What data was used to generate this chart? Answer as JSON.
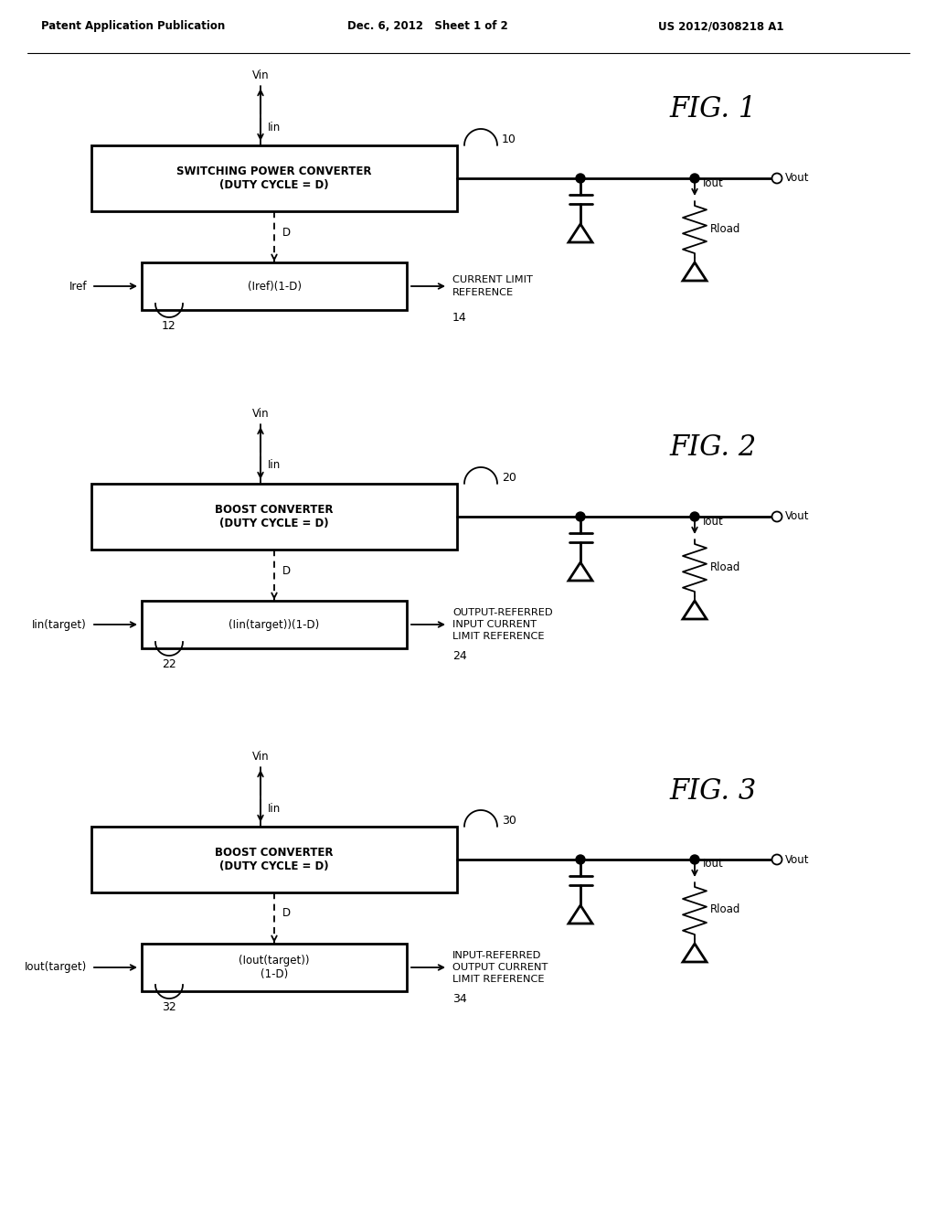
{
  "bg_color": "#ffffff",
  "header_left": "Patent Application Publication",
  "header_mid": "Dec. 6, 2012   Sheet 1 of 2",
  "header_right": "US 2012/0308218 A1",
  "fig1": {
    "title": "FIG. 1",
    "box1_text": "SWITCHING POWER CONVERTER\n(DUTY CYCLE = D)",
    "box2_text": "(Iref)(1-D)",
    "label_input": "Iref",
    "label_d": "D",
    "label_vin": "Vin",
    "label_iin": "Iin",
    "label_vout": "Vout",
    "label_iout": "Iout",
    "label_rload": "Rload",
    "label_clr": "CURRENT LIMIT\nREFERENCE",
    "num_block": "10",
    "num_ref": "12",
    "num_out": "14"
  },
  "fig2": {
    "title": "FIG. 2",
    "box1_text": "BOOST CONVERTER\n(DUTY CYCLE = D)",
    "box2_text": "(Iin(target))(1-D)",
    "label_input": "Iin(target)",
    "label_d": "D",
    "label_vin": "Vin",
    "label_iin": "Iin",
    "label_vout": "Vout",
    "label_iout": "Iout",
    "label_rload": "Rload",
    "label_clr": "OUTPUT-REFERRED\nINPUT CURRENT\nLIMIT REFERENCE",
    "num_block": "20",
    "num_ref": "22",
    "num_out": "24"
  },
  "fig3": {
    "title": "FIG. 3",
    "box1_text": "BOOST CONVERTER\n(DUTY CYCLE = D)",
    "box2_text": "(Iout(target))\n(1-D)",
    "label_input": "Iout(target)",
    "label_d": "D",
    "label_vin": "Vin",
    "label_iin": "Iin",
    "label_vout": "Vout",
    "label_iout": "Iout",
    "label_rload": "Rload",
    "label_clr": "INPUT-REFERRED\nOUTPUT CURRENT\nLIMIT REFERENCE",
    "num_block": "30",
    "num_ref": "32",
    "num_out": "34"
  }
}
